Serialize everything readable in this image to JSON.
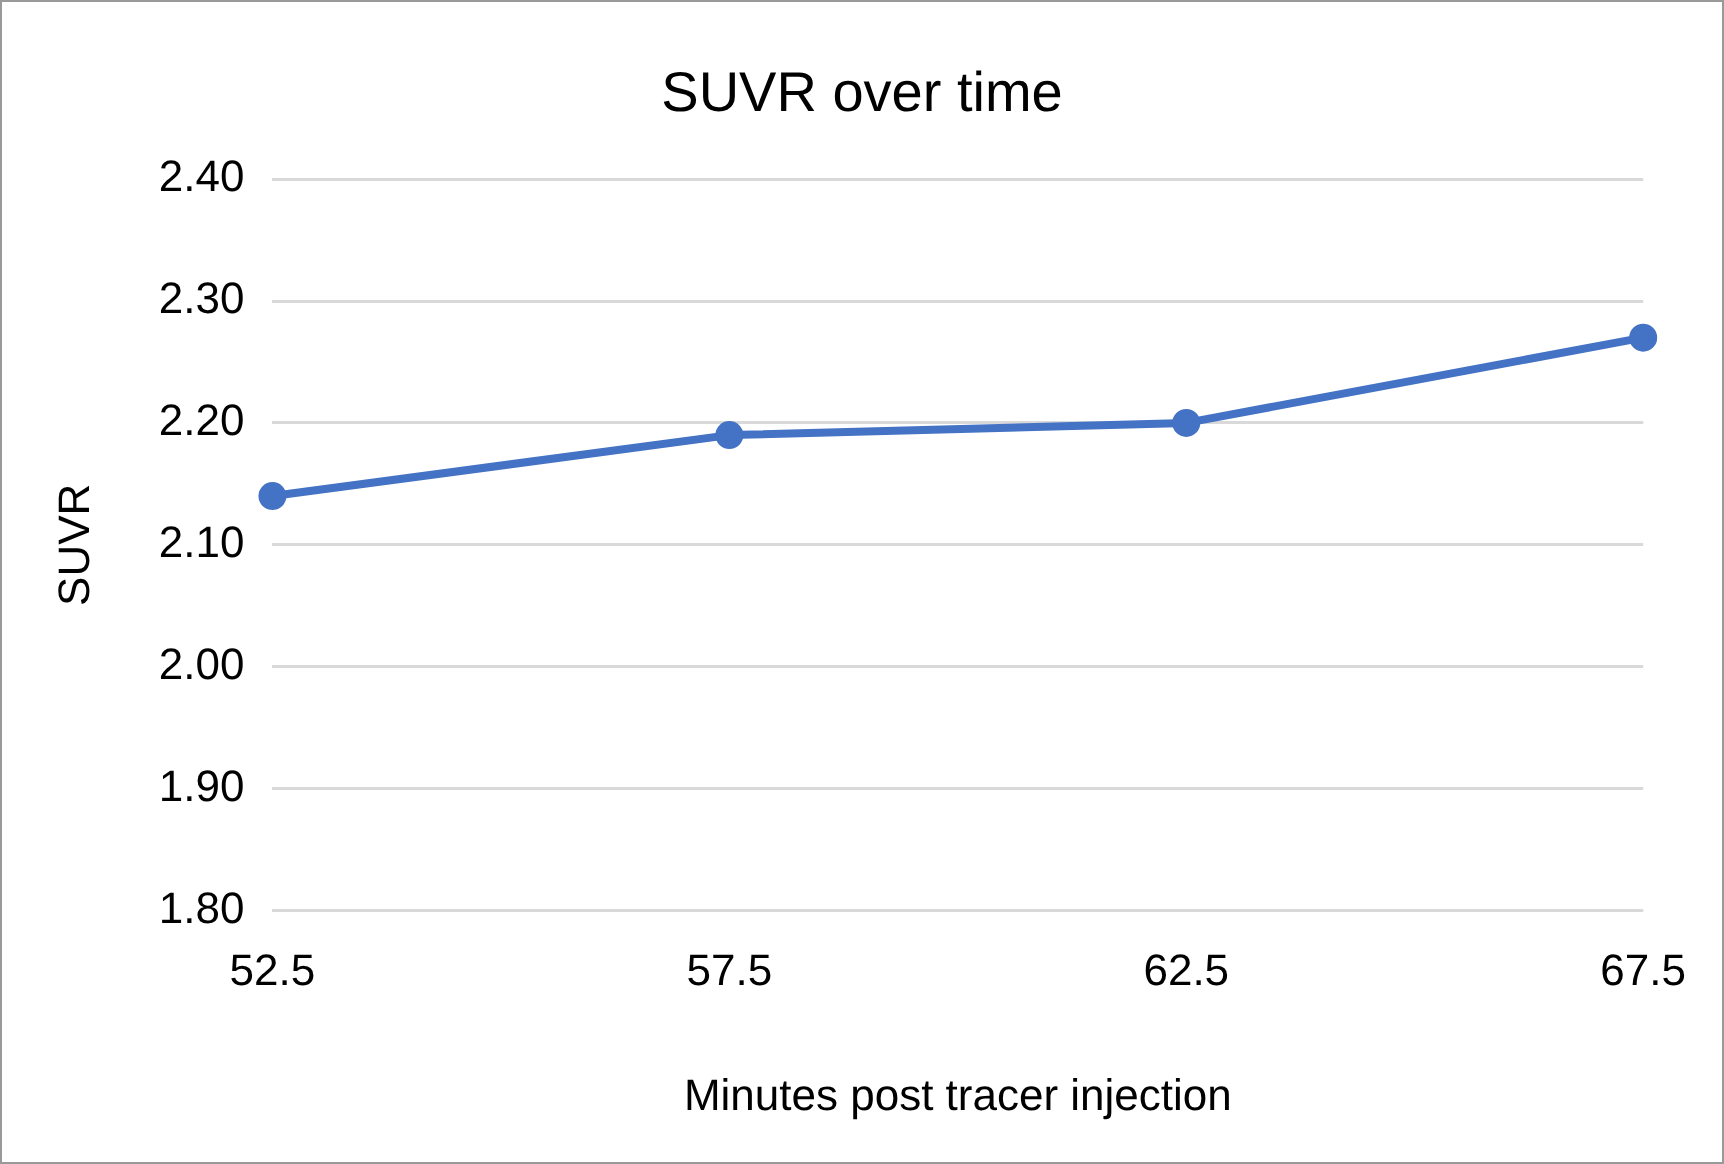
{
  "chart_data": {
    "type": "line",
    "title": "SUVR over time",
    "xlabel": "Minutes post tracer injection",
    "ylabel": "SUVR",
    "categories": [
      "52.5",
      "57.5",
      "62.5",
      "67.5"
    ],
    "series": [
      {
        "color": "#4472c4",
        "values": [
          2.14,
          2.19,
          2.2,
          2.27
        ]
      }
    ],
    "ylim": [
      1.8,
      2.4
    ],
    "yticks": [
      {
        "value": 1.8,
        "label": "1.80"
      },
      {
        "value": 1.9,
        "label": "1.90"
      },
      {
        "value": 2.0,
        "label": "2.00"
      },
      {
        "value": 2.1,
        "label": "2.10"
      },
      {
        "value": 2.2,
        "label": "2.20"
      },
      {
        "value": 2.3,
        "label": "2.30"
      },
      {
        "value": 2.4,
        "label": "2.40"
      }
    ],
    "grid": "y",
    "marker": "circle",
    "line_style": "solid",
    "legend": false
  }
}
